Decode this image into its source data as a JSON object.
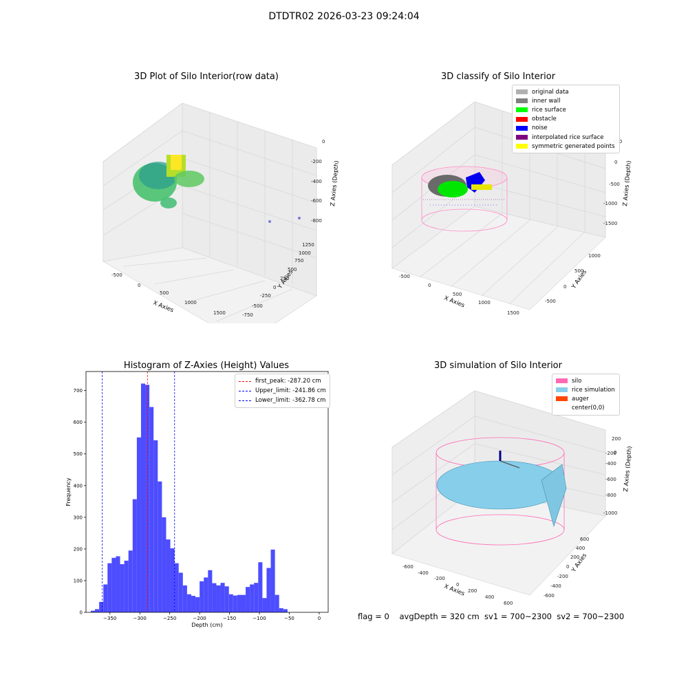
{
  "suptitle": "DTDTR02 2026-03-23 09:24:04",
  "footer": "flag = 0    avgDepth = 320 cm  sv1 = 700~2300  sv2 = 700~2300",
  "panels": {
    "raw": {
      "title": "3D Plot of Silo Interior(row data)",
      "xlabel": "X Axies",
      "ylabel": "Y Axies",
      "zlabel": "Z Axies (Depth)",
      "xticks": [
        "-500",
        "0",
        "500",
        "1000",
        "1500"
      ],
      "yticks": [
        "-750",
        "-500",
        "-250",
        "0",
        "250",
        "500",
        "750",
        "1000",
        "1250"
      ],
      "zticks": [
        "-800",
        "-600",
        "-400",
        "-200",
        "0"
      ]
    },
    "classify": {
      "title": "3D classify of Silo Interior",
      "xlabel": "X Axies",
      "ylabel": "Y Axies",
      "zlabel": "Z Axies (Depth)",
      "xticks": [
        "-500",
        "0",
        "500",
        "1000",
        "1500"
      ],
      "yticks": [
        "-500",
        "0",
        "500",
        "1000"
      ],
      "zticks": [
        "-1500",
        "-1000",
        "-500",
        "0",
        "500"
      ],
      "legend": [
        {
          "label": "original data",
          "color": "#b0b0b0"
        },
        {
          "label": "inner wall",
          "color": "#808080"
        },
        {
          "label": "rice surface",
          "color": "#00ff00"
        },
        {
          "label": "obstacle",
          "color": "#ff0000"
        },
        {
          "label": "noise",
          "color": "#0000ff"
        },
        {
          "label": "interpolated rice surface",
          "color": "#800080"
        },
        {
          "label": "symmetric generated points",
          "color": "#ffff00"
        }
      ]
    },
    "simulation": {
      "title": "3D simulation of Silo Interior",
      "xlabel": "X Axies",
      "ylabel": "Y Axies",
      "zlabel": "Z Axies (Depth)",
      "xticks": [
        "-600",
        "-400",
        "-200",
        "0",
        "200",
        "400",
        "600"
      ],
      "yticks": [
        "-600",
        "-400",
        "-200",
        "0",
        "200",
        "400",
        "600"
      ],
      "zticks": [
        "-1000",
        "-800",
        "-600",
        "-400",
        "-200",
        "0",
        "200"
      ],
      "legend": [
        {
          "label": "silo",
          "color": "#ff69b4"
        },
        {
          "label": "rice simulation",
          "color": "#87ceeb"
        },
        {
          "label": "auger",
          "color": "#ff4500"
        },
        {
          "label": "center(0,0)",
          "color": "#ffffff"
        }
      ]
    }
  },
  "chart_data": {
    "type": "bar",
    "title": "Histogram of Z-Axies (Height) Values",
    "xlabel": "Depth (cm)",
    "ylabel": "Frequency",
    "xlim": [
      -390,
      15
    ],
    "ylim": [
      0,
      760
    ],
    "xticks": [
      -350,
      -300,
      -250,
      -200,
      -150,
      -100,
      -50,
      0
    ],
    "yticks": [
      0,
      100,
      200,
      300,
      400,
      500,
      600,
      700
    ],
    "bar_color": "#4d4dff",
    "bins": [
      [
        -382,
        5
      ],
      [
        -375,
        10
      ],
      [
        -368,
        33
      ],
      [
        -361,
        88
      ],
      [
        -354,
        155
      ],
      [
        -347,
        172
      ],
      [
        -340,
        177
      ],
      [
        -333,
        152
      ],
      [
        -326,
        163
      ],
      [
        -319,
        195
      ],
      [
        -312,
        357
      ],
      [
        -305,
        552
      ],
      [
        -298,
        722
      ],
      [
        -291,
        718
      ],
      [
        -284,
        648
      ],
      [
        -277,
        543
      ],
      [
        -270,
        413
      ],
      [
        -263,
        300
      ],
      [
        -256,
        230
      ],
      [
        -249,
        202
      ],
      [
        -242,
        155
      ],
      [
        -235,
        125
      ],
      [
        -228,
        85
      ],
      [
        -221,
        57
      ],
      [
        -214,
        52
      ],
      [
        -207,
        48
      ],
      [
        -200,
        98
      ],
      [
        -193,
        110
      ],
      [
        -186,
        133
      ],
      [
        -179,
        92
      ],
      [
        -172,
        85
      ],
      [
        -165,
        93
      ],
      [
        -158,
        82
      ],
      [
        -151,
        57
      ],
      [
        -144,
        53
      ],
      [
        -137,
        55
      ],
      [
        -130,
        55
      ],
      [
        -123,
        80
      ],
      [
        -116,
        88
      ],
      [
        -109,
        93
      ],
      [
        -102,
        158
      ],
      [
        -95,
        45
      ],
      [
        -88,
        140
      ],
      [
        -81,
        198
      ],
      [
        -74,
        55
      ],
      [
        -67,
        13
      ],
      [
        -60,
        10
      ]
    ],
    "vlines": [
      {
        "label": "first_peak: -287.20 cm",
        "x": -287.2,
        "color": "#ff0000"
      },
      {
        "label": "Upper_limit: -241.86 cm",
        "x": -241.86,
        "color": "#0000ff"
      },
      {
        "label": "Lower_limit: -362.78 cm",
        "x": -362.78,
        "color": "#0000ff"
      }
    ]
  }
}
